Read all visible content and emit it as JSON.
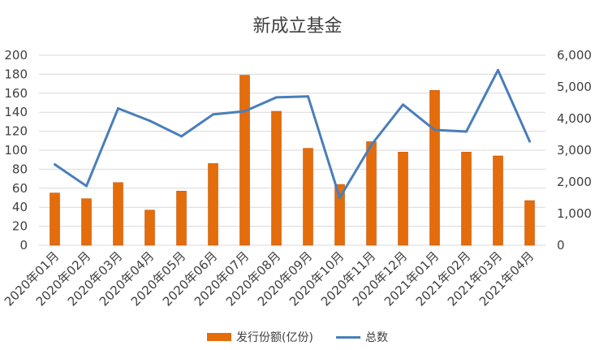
{
  "chart_data": {
    "type": "bar+line",
    "title": "新成立基金",
    "categories": [
      "2020年01月",
      "2020年02月",
      "2020年03月",
      "2020年04月",
      "2020年05月",
      "2020年06月",
      "2020年07月",
      "2020年08月",
      "2020年09月",
      "2020年10月",
      "2020年11月",
      "2020年12月",
      "2021年01月",
      "2021年02月",
      "2021年03月",
      "2021年04月"
    ],
    "series": [
      {
        "name": "发行份额(亿份)",
        "type": "bar",
        "axis": "left",
        "color": "#e46c0a",
        "values": [
          55,
          49,
          66,
          37,
          57,
          86,
          179,
          141,
          102,
          64,
          109,
          98,
          163,
          98,
          94,
          47
        ]
      },
      {
        "name": "总数",
        "type": "line",
        "axis": "right",
        "color": "#4a7ebb",
        "values": [
          2550,
          1870,
          4320,
          3930,
          3440,
          4130,
          4230,
          4670,
          4700,
          1500,
          3170,
          4440,
          3640,
          3590,
          5530,
          3280
        ]
      }
    ],
    "ylim_left": [
      0,
      200
    ],
    "yticks_left": [
      "0",
      "20",
      "40",
      "60",
      "80",
      "100",
      "120",
      "140",
      "160",
      "180",
      "200"
    ],
    "ylim_right": [
      0,
      6000
    ],
    "yticks_right": [
      "0",
      "1,000",
      "2,000",
      "3,000",
      "4,000",
      "5,000",
      "6,000"
    ],
    "grid": true,
    "legend_position": "bottom"
  }
}
